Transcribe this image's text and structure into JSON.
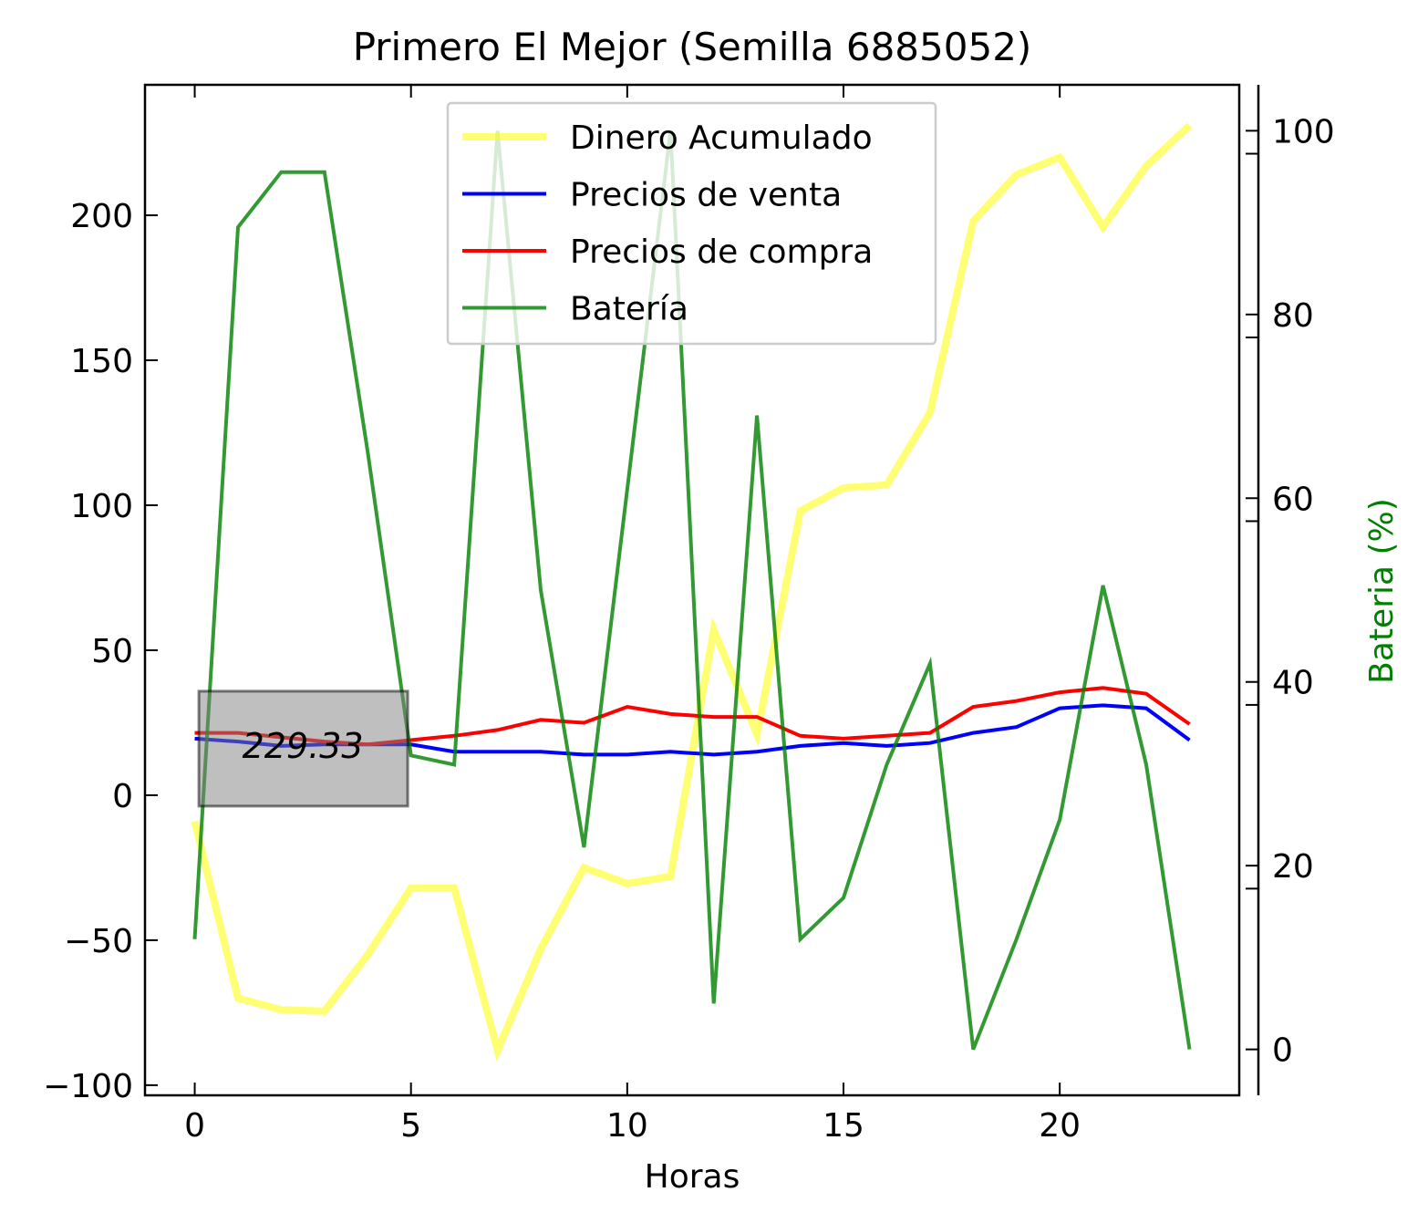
{
  "chart_data": {
    "type": "line",
    "title": "Primero El Mejor (Semilla 6885052)",
    "xlabel": "Horas",
    "ylabel": "",
    "ylabel_right": "Bateria (%)",
    "xlim": [
      -1.15,
      24.15
    ],
    "ylim": [
      -103.5,
      245
    ],
    "ylim_right": [
      -5,
      105
    ],
    "x_ticks": [
      0,
      5,
      10,
      15,
      20
    ],
    "y_ticks": [
      -100,
      -50,
      0,
      50,
      100,
      150,
      200
    ],
    "y_ticks_right": [
      0,
      20,
      40,
      60,
      80,
      100
    ],
    "y_tick_labels": [
      "−100",
      "−50",
      "0",
      "50",
      "100",
      "150",
      "200"
    ],
    "grid": false,
    "legend_position": "upper center",
    "x": [
      0,
      1,
      2,
      3,
      4,
      5,
      6,
      7,
      8,
      9,
      10,
      11,
      12,
      13,
      14,
      15,
      16,
      17,
      18,
      19,
      20,
      21,
      22,
      23
    ],
    "series": [
      {
        "name": "Dinero Acumulado",
        "axis": "left",
        "color": "#ffff00",
        "opacity": 0.55,
        "width": 8,
        "values": [
          -9,
          -70,
          -74,
          -74.5,
          -55,
          -32,
          -32,
          -88,
          -53,
          -25,
          -30.5,
          -28,
          57,
          21,
          98,
          106,
          107,
          132,
          198,
          214,
          220,
          196,
          217,
          231
        ]
      },
      {
        "name": "Precios de venta",
        "axis": "left",
        "color": "#0000ff",
        "opacity": 1,
        "width": 4,
        "values": [
          19.5,
          18.5,
          17,
          17.5,
          17.5,
          17.5,
          15,
          15,
          15,
          14,
          14,
          15,
          14,
          15,
          17,
          18,
          17,
          18,
          21.5,
          23.5,
          30,
          31,
          30,
          19
        ]
      },
      {
        "name": "Precios de compra",
        "axis": "left",
        "color": "#ff0000",
        "opacity": 1,
        "width": 4,
        "values": [
          21.5,
          21.5,
          20,
          18.5,
          17.5,
          19,
          20.5,
          22.5,
          26,
          25,
          30.5,
          28,
          27,
          27,
          20.5,
          19.5,
          20.5,
          21.5,
          30.5,
          32.5,
          35.5,
          37,
          35,
          24.5
        ]
      },
      {
        "name": "Batería",
        "axis": "right",
        "color": "#008000",
        "opacity": 0.8,
        "width": 4,
        "values": [
          12,
          89.5,
          95.5,
          95.5,
          65,
          32,
          31,
          100,
          50,
          22,
          61,
          100,
          5,
          69,
          12,
          16.5,
          31,
          42,
          0,
          12,
          25,
          50.5,
          31,
          0
        ]
      }
    ],
    "annotation": {
      "text": "229.33",
      "x": 2.5,
      "y": 17
    }
  }
}
